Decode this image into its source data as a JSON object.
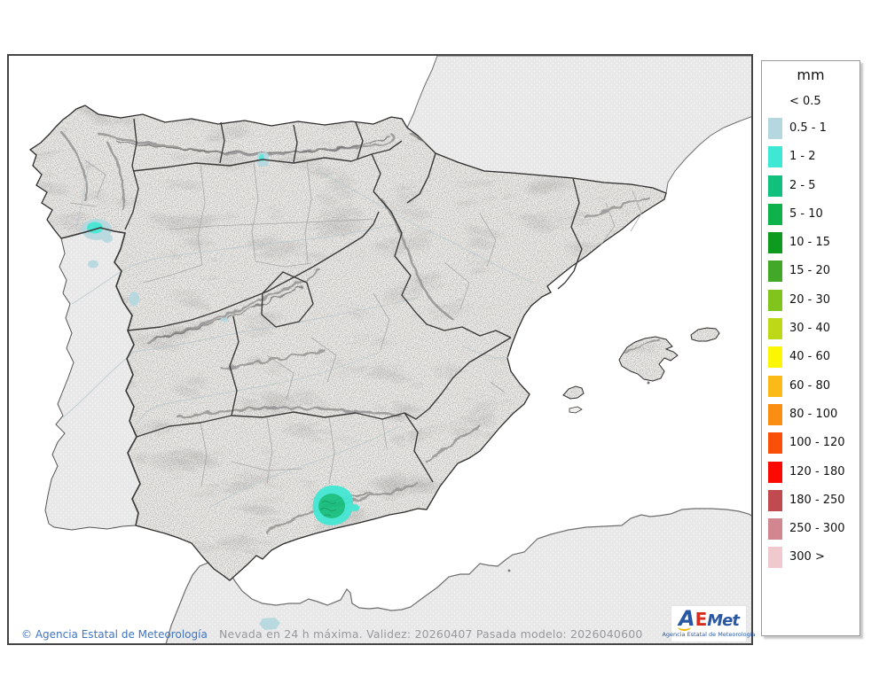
{
  "legend": {
    "title": "mm",
    "first_label": "< 0.5",
    "rows": [
      {
        "label": "0.5 - 1",
        "color": "#b5d8e0"
      },
      {
        "label": "1 - 2",
        "color": "#3fe8d4"
      },
      {
        "label": "2 - 5",
        "color": "#12c07d"
      },
      {
        "label": "5 - 10",
        "color": "#0fb24a"
      },
      {
        "label": "10 - 15",
        "color": "#0d9a1e"
      },
      {
        "label": "15 - 20",
        "color": "#43a827"
      },
      {
        "label": "20 - 30",
        "color": "#82c41e"
      },
      {
        "label": "30 - 40",
        "color": "#bcd816"
      },
      {
        "label": "40 - 60",
        "color": "#fbf702"
      },
      {
        "label": "60 - 80",
        "color": "#fbba18"
      },
      {
        "label": "80 - 100",
        "color": "#fa8e12"
      },
      {
        "label": "100 - 120",
        "color": "#fa4f08"
      },
      {
        "label": "120 - 180",
        "color": "#fb0a04"
      },
      {
        "label": "180 - 250",
        "color": "#c14a50"
      },
      {
        "label": "250 - 300",
        "color": "#d2868f"
      },
      {
        "label": "300 >",
        "color": "#efc9cd"
      }
    ]
  },
  "footer": {
    "copyright": "© Agencia Estatal de Meteorología",
    "caption": "Nevada en 24 h máxima. Validez: 20260407 Pasada modelo: 2026040600"
  },
  "logo": {
    "a": "A",
    "e": "E",
    "met": "Met",
    "subtitle": "Agencia Estatal de Meteorología",
    "blue": "#2857a4",
    "red": "#d62e1e",
    "yellow": "#f0b400"
  },
  "map": {
    "sea_color": "#ffffff",
    "foreign_land_color": "#e8e8e8",
    "foreign_dot_color": "#f8f8f8",
    "spain_land_color": "#f0efec",
    "frame_color": "#454545",
    "coast_color": "#2e2e2e",
    "foreign_coast_color": "#6e6e6e",
    "region_border_color": "#3a3a3a",
    "province_border_color": "#a8a8a8",
    "river_color": "#bdc9cd",
    "mountain_color": "#8f8f8f"
  },
  "snow_areas": [
    {
      "area": "galicia-mino-border",
      "range_mm": "1 - 2",
      "halo_mm": "0.5 - 1"
    },
    {
      "area": "northern-portugal",
      "range_mm": "0.5 - 1"
    },
    {
      "area": "serra-da-estrela-area",
      "range_mm": "0.5 - 1"
    },
    {
      "area": "cantabrian-mountains",
      "range_mm": "0.5 - 1"
    },
    {
      "area": "sierra-nevada",
      "range_mm": "2 - 5",
      "ring_mm": "1 - 2"
    },
    {
      "area": "rif-morocco",
      "range_mm": "0.5 - 1"
    }
  ]
}
